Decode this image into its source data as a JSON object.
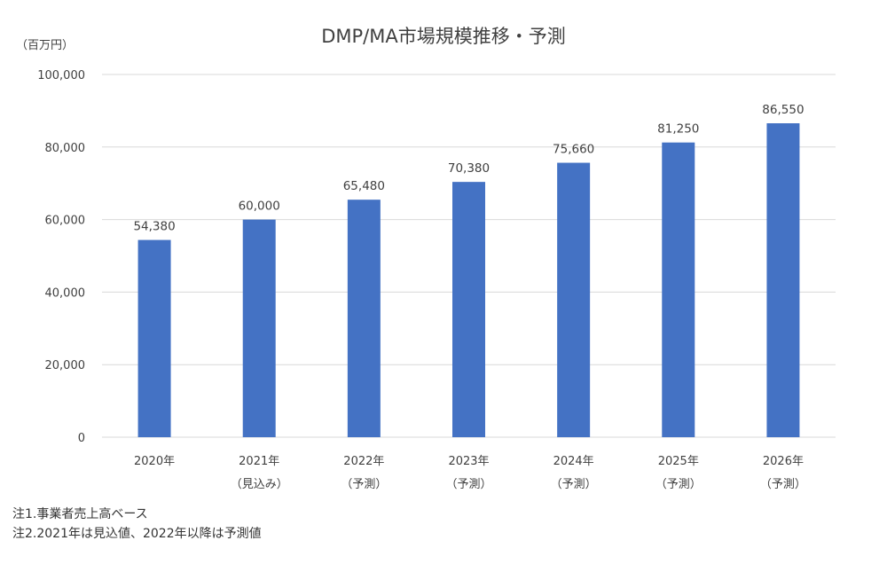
{
  "chart_data": {
    "type": "bar",
    "title": "DMP/MA市場規模推移・予測",
    "unit_label": "（百万円）",
    "categories": [
      {
        "year": "2020年",
        "sub": ""
      },
      {
        "year": "2021年",
        "sub": "（見込み）"
      },
      {
        "year": "2022年",
        "sub": "（予測）"
      },
      {
        "year": "2023年",
        "sub": "（予測）"
      },
      {
        "year": "2024年",
        "sub": "（予測）"
      },
      {
        "year": "2025年",
        "sub": "（予測）"
      },
      {
        "year": "2026年",
        "sub": "（予測）"
      }
    ],
    "values": [
      54380,
      60000,
      65480,
      70380,
      75660,
      81250,
      86550
    ],
    "value_labels": [
      "54,380",
      "60,000",
      "65,480",
      "70,380",
      "75,660",
      "81,250",
      "86,550"
    ],
    "ylim": [
      0,
      100000
    ],
    "yticks": [
      0,
      20000,
      40000,
      60000,
      80000,
      100000
    ],
    "ytick_labels": [
      "0",
      "20,000",
      "40,000",
      "60,000",
      "80,000",
      "100,000"
    ],
    "bar_color": "#4472c4",
    "grid": true,
    "legend": "none"
  },
  "notes": [
    "注1.事業者売上高ベース",
    "注2.2021年は見込値、2022年以降は予測値"
  ]
}
